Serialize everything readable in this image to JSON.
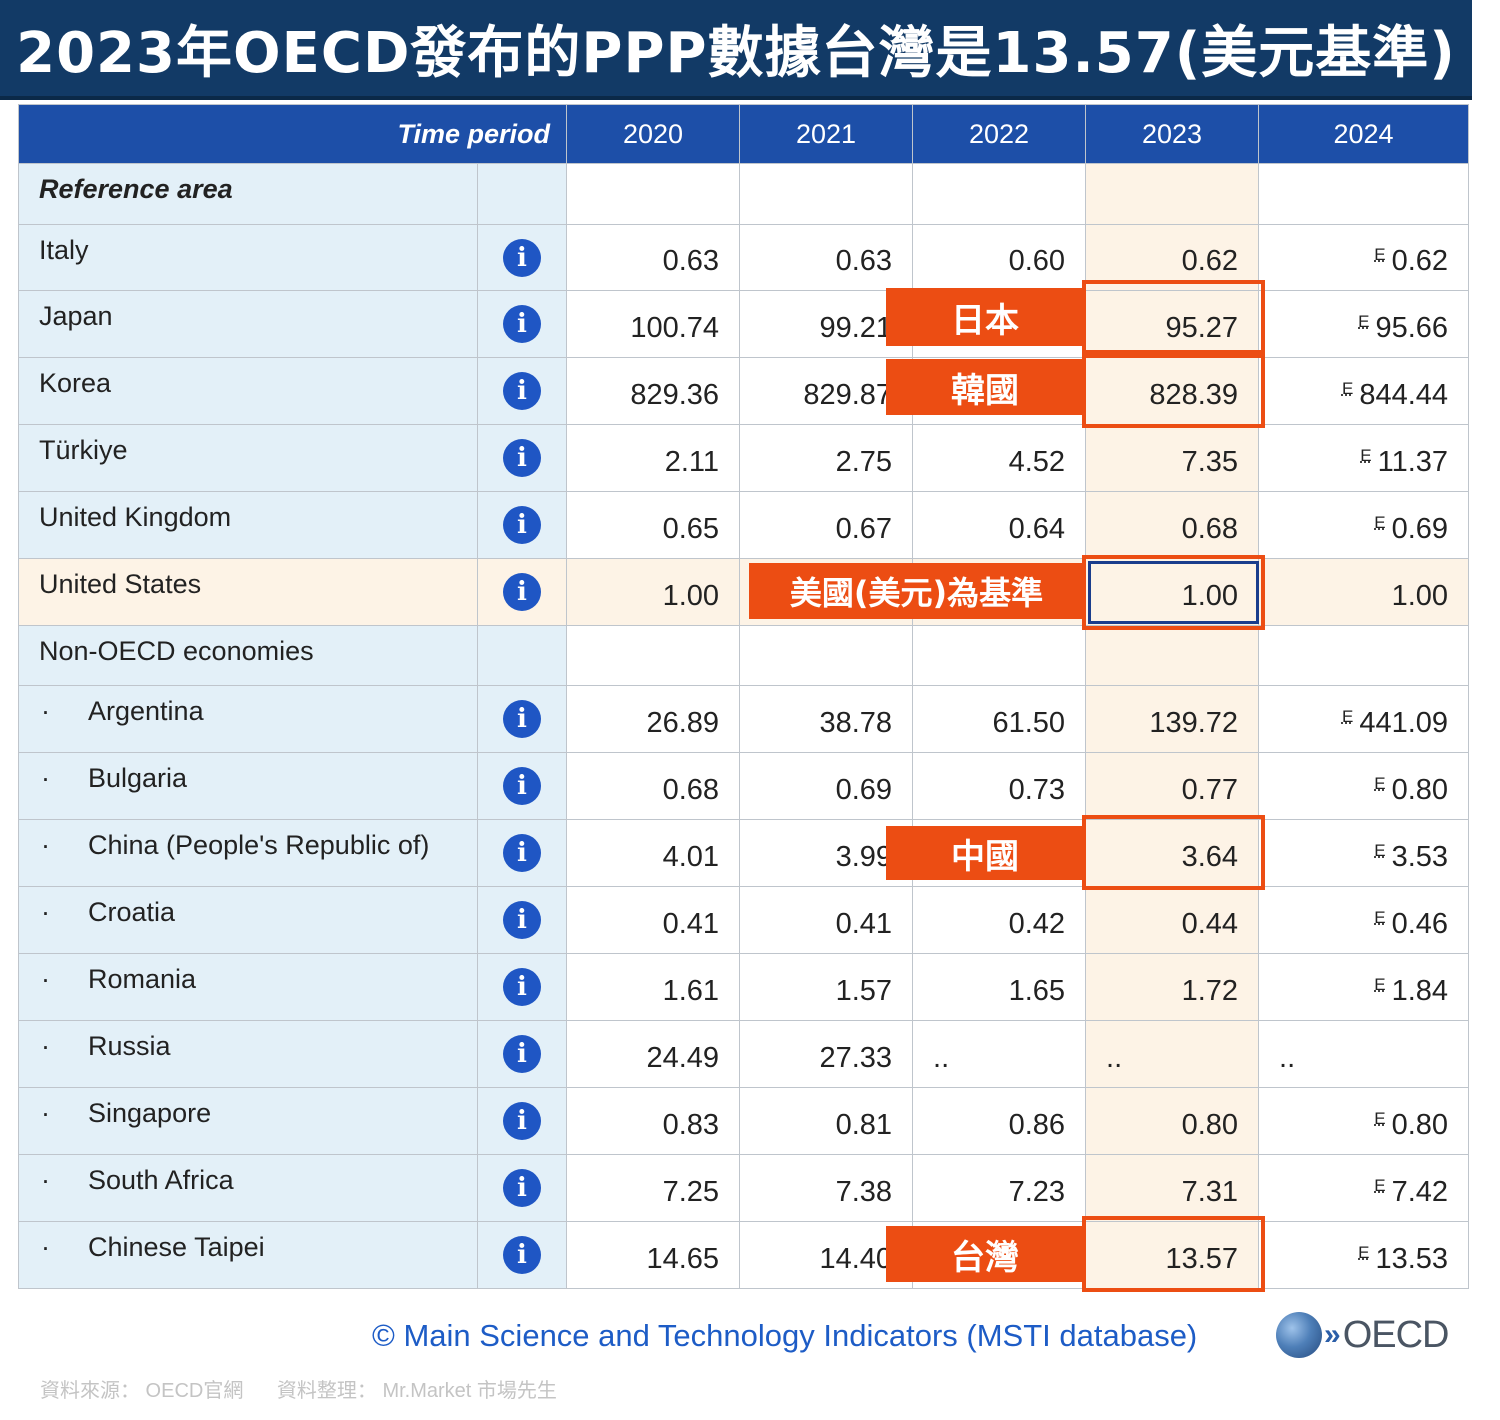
{
  "title": "2023年OECD發布的PPP數據台灣是13.57(美元基準)",
  "table": {
    "time_period_label": "Time period",
    "reference_area_label": "Reference area",
    "years": [
      "2020",
      "2021",
      "2022",
      "2023",
      "2024"
    ],
    "estimate_flag": "E",
    "info_icon": "i",
    "rows": [
      {
        "name": "Italy",
        "values": [
          "0.63",
          "0.63",
          "0.60",
          "0.62",
          "0.62"
        ]
      },
      {
        "name": "Japan",
        "values": [
          "100.74",
          "99.21",
          "",
          "95.27",
          "95.66"
        ]
      },
      {
        "name": "Korea",
        "values": [
          "829.36",
          "829.87",
          "",
          "828.39",
          "844.44"
        ]
      },
      {
        "name": "Türkiye",
        "values": [
          "2.11",
          "2.75",
          "4.52",
          "7.35",
          "11.37"
        ]
      },
      {
        "name": "United Kingdom",
        "values": [
          "0.65",
          "0.67",
          "0.64",
          "0.68",
          "0.69"
        ]
      },
      {
        "name": "United States",
        "values": [
          "1.00",
          "",
          "",
          "1.00",
          "1.00"
        ]
      },
      {
        "name": "Non-OECD economies"
      },
      {
        "name": "Argentina",
        "values": [
          "26.89",
          "38.78",
          "61.50",
          "139.72",
          "441.09"
        ]
      },
      {
        "name": "Bulgaria",
        "values": [
          "0.68",
          "0.69",
          "0.73",
          "0.77",
          "0.80"
        ]
      },
      {
        "name": "China (People's Republic of)",
        "values": [
          "4.01",
          "3.99",
          "",
          "3.64",
          "3.53"
        ]
      },
      {
        "name": "Croatia",
        "values": [
          "0.41",
          "0.41",
          "0.42",
          "0.44",
          "0.46"
        ]
      },
      {
        "name": "Romania",
        "values": [
          "1.61",
          "1.57",
          "1.65",
          "1.72",
          "1.84"
        ]
      },
      {
        "name": "Russia",
        "values": [
          "24.49",
          "27.33",
          "..",
          "..",
          ".."
        ]
      },
      {
        "name": "Singapore",
        "values": [
          "0.83",
          "0.81",
          "0.86",
          "0.80",
          "0.80"
        ]
      },
      {
        "name": "South Africa",
        "values": [
          "7.25",
          "7.38",
          "7.23",
          "7.31",
          "7.42"
        ]
      },
      {
        "name": "Chinese Taipei",
        "values": [
          "14.65",
          "14.40",
          "",
          "13.57",
          "13.53"
        ]
      }
    ]
  },
  "annotations": {
    "japan": "日本",
    "korea": "韓國",
    "usa": "美國(美元)為基準",
    "china": "中國",
    "taiwan": "台灣"
  },
  "footer": {
    "source_line": "©  Main Science and Technology Indicators (MSTI database)",
    "logo_arrows": "»",
    "logo_text": "OECD",
    "credit_source": "資料來源：  OECD官網",
    "credit_editor": "資料整理：  Mr.Market 市場先生"
  },
  "colors": {
    "banner": "#123a66",
    "header": "#1d4fa8",
    "highlight": "#ec4d13",
    "label_column": "#e3f0f8",
    "year_highlight": "#fdf3e6"
  }
}
